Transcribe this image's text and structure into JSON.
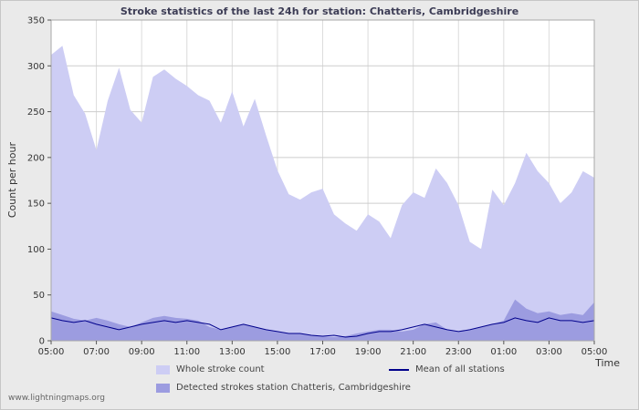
{
  "page": {
    "title": "Stroke statistics of the last 24h for station: Chatteris, Cambridgeshire",
    "footer": "www.lightningmaps.org"
  },
  "axes": {
    "y_label": "Count per hour",
    "x_label": "Time"
  },
  "colors": {
    "whole_area": "#cdcdf4",
    "detected_area": "#9c9ce0",
    "mean_line": "#00008b",
    "plot_background": "#ffffff",
    "page_background": "#eaeaea"
  },
  "chart_data": {
    "type": "area",
    "title": "Stroke statistics of the last 24h for station: Chatteris, Cambridgeshire",
    "xlabel": "Time",
    "ylabel": "Count per hour",
    "ylim": [
      0,
      350
    ],
    "y_ticks": [
      0,
      50,
      100,
      150,
      200,
      250,
      300,
      350
    ],
    "x_ticks": [
      "05:00",
      "07:00",
      "09:00",
      "11:00",
      "13:00",
      "15:00",
      "17:00",
      "19:00",
      "21:00",
      "23:00",
      "01:00",
      "03:00",
      "05:00"
    ],
    "x_resolution_minutes": 30,
    "grid": true,
    "legend_position": "bottom",
    "series": [
      {
        "name": "Whole stroke count",
        "style": "area",
        "color": "#cdcdf4",
        "values": [
          312,
          322,
          268,
          248,
          208,
          262,
          298,
          252,
          238,
          288,
          296,
          286,
          278,
          268,
          262,
          238,
          272,
          234,
          264,
          224,
          186,
          160,
          154,
          162,
          166,
          138,
          128,
          120,
          138,
          130,
          112,
          148,
          162,
          156,
          188,
          172,
          148,
          108,
          100,
          165,
          148,
          172,
          205,
          185,
          172,
          150,
          162,
          185,
          178
        ]
      },
      {
        "name": "Detected strokes station Chatteris, Cambridgeshire",
        "style": "area",
        "color": "#9c9ce0",
        "values": [
          32,
          28,
          24,
          22,
          25,
          22,
          18,
          15,
          20,
          25,
          27,
          25,
          24,
          22,
          15,
          12,
          15,
          18,
          15,
          12,
          10,
          8,
          8,
          6,
          5,
          4,
          5,
          8,
          10,
          12,
          12,
          10,
          12,
          18,
          20,
          12,
          10,
          12,
          15,
          18,
          22,
          45,
          35,
          30,
          32,
          28,
          30,
          28,
          42
        ]
      },
      {
        "name": "Mean of all stations",
        "style": "line",
        "color": "#00008b",
        "values": [
          25,
          22,
          20,
          22,
          18,
          15,
          12,
          15,
          18,
          20,
          22,
          20,
          22,
          20,
          18,
          12,
          15,
          18,
          15,
          12,
          10,
          8,
          8,
          6,
          5,
          6,
          4,
          5,
          8,
          10,
          10,
          12,
          15,
          18,
          15,
          12,
          10,
          12,
          15,
          18,
          20,
          25,
          22,
          20,
          25,
          22,
          22,
          20,
          22
        ]
      }
    ]
  }
}
